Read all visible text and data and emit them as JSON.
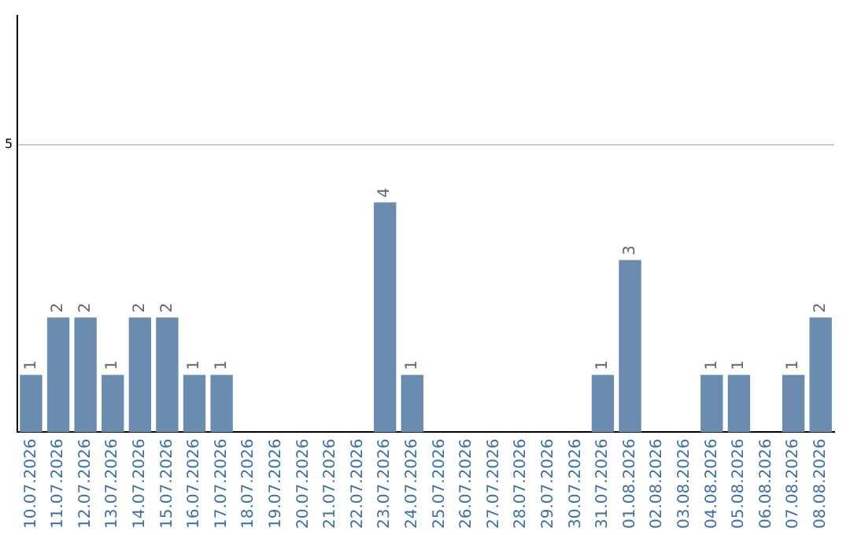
{
  "chart_data": {
    "type": "bar",
    "categories": [
      "10.07.2026",
      "11.07.2026",
      "12.07.2026",
      "13.07.2026",
      "14.07.2026",
      "15.07.2026",
      "16.07.2026",
      "17.07.2026",
      "18.07.2026",
      "19.07.2026",
      "20.07.2026",
      "21.07.2026",
      "22.07.2026",
      "23.07.2026",
      "24.07.2026",
      "25.07.2026",
      "26.07.2026",
      "27.07.2026",
      "28.07.2026",
      "29.07.2026",
      "30.07.2026",
      "31.07.2026",
      "01.08.2026",
      "02.08.2026",
      "03.08.2026",
      "04.08.2026",
      "05.08.2026",
      "06.08.2026",
      "07.08.2026",
      "08.08.2026"
    ],
    "values": [
      1,
      2,
      2,
      1,
      2,
      2,
      1,
      1,
      0,
      0,
      0,
      0,
      0,
      4,
      1,
      0,
      0,
      0,
      0,
      0,
      0,
      1,
      3,
      0,
      0,
      1,
      1,
      0,
      1,
      2
    ],
    "value_labels": [
      "1",
      "2",
      "2",
      "1",
      "2",
      "2",
      "1",
      "1",
      null,
      null,
      null,
      null,
      null,
      "4",
      "1",
      null,
      null,
      null,
      null,
      null,
      null,
      "1",
      "3",
      null,
      null,
      "1",
      "1",
      null,
      "1",
      "2"
    ],
    "color": "#6b8cae",
    "ylim": [
      0,
      7.25
    ],
    "yticks": [
      5
    ],
    "grid": "y",
    "legend": false
  }
}
